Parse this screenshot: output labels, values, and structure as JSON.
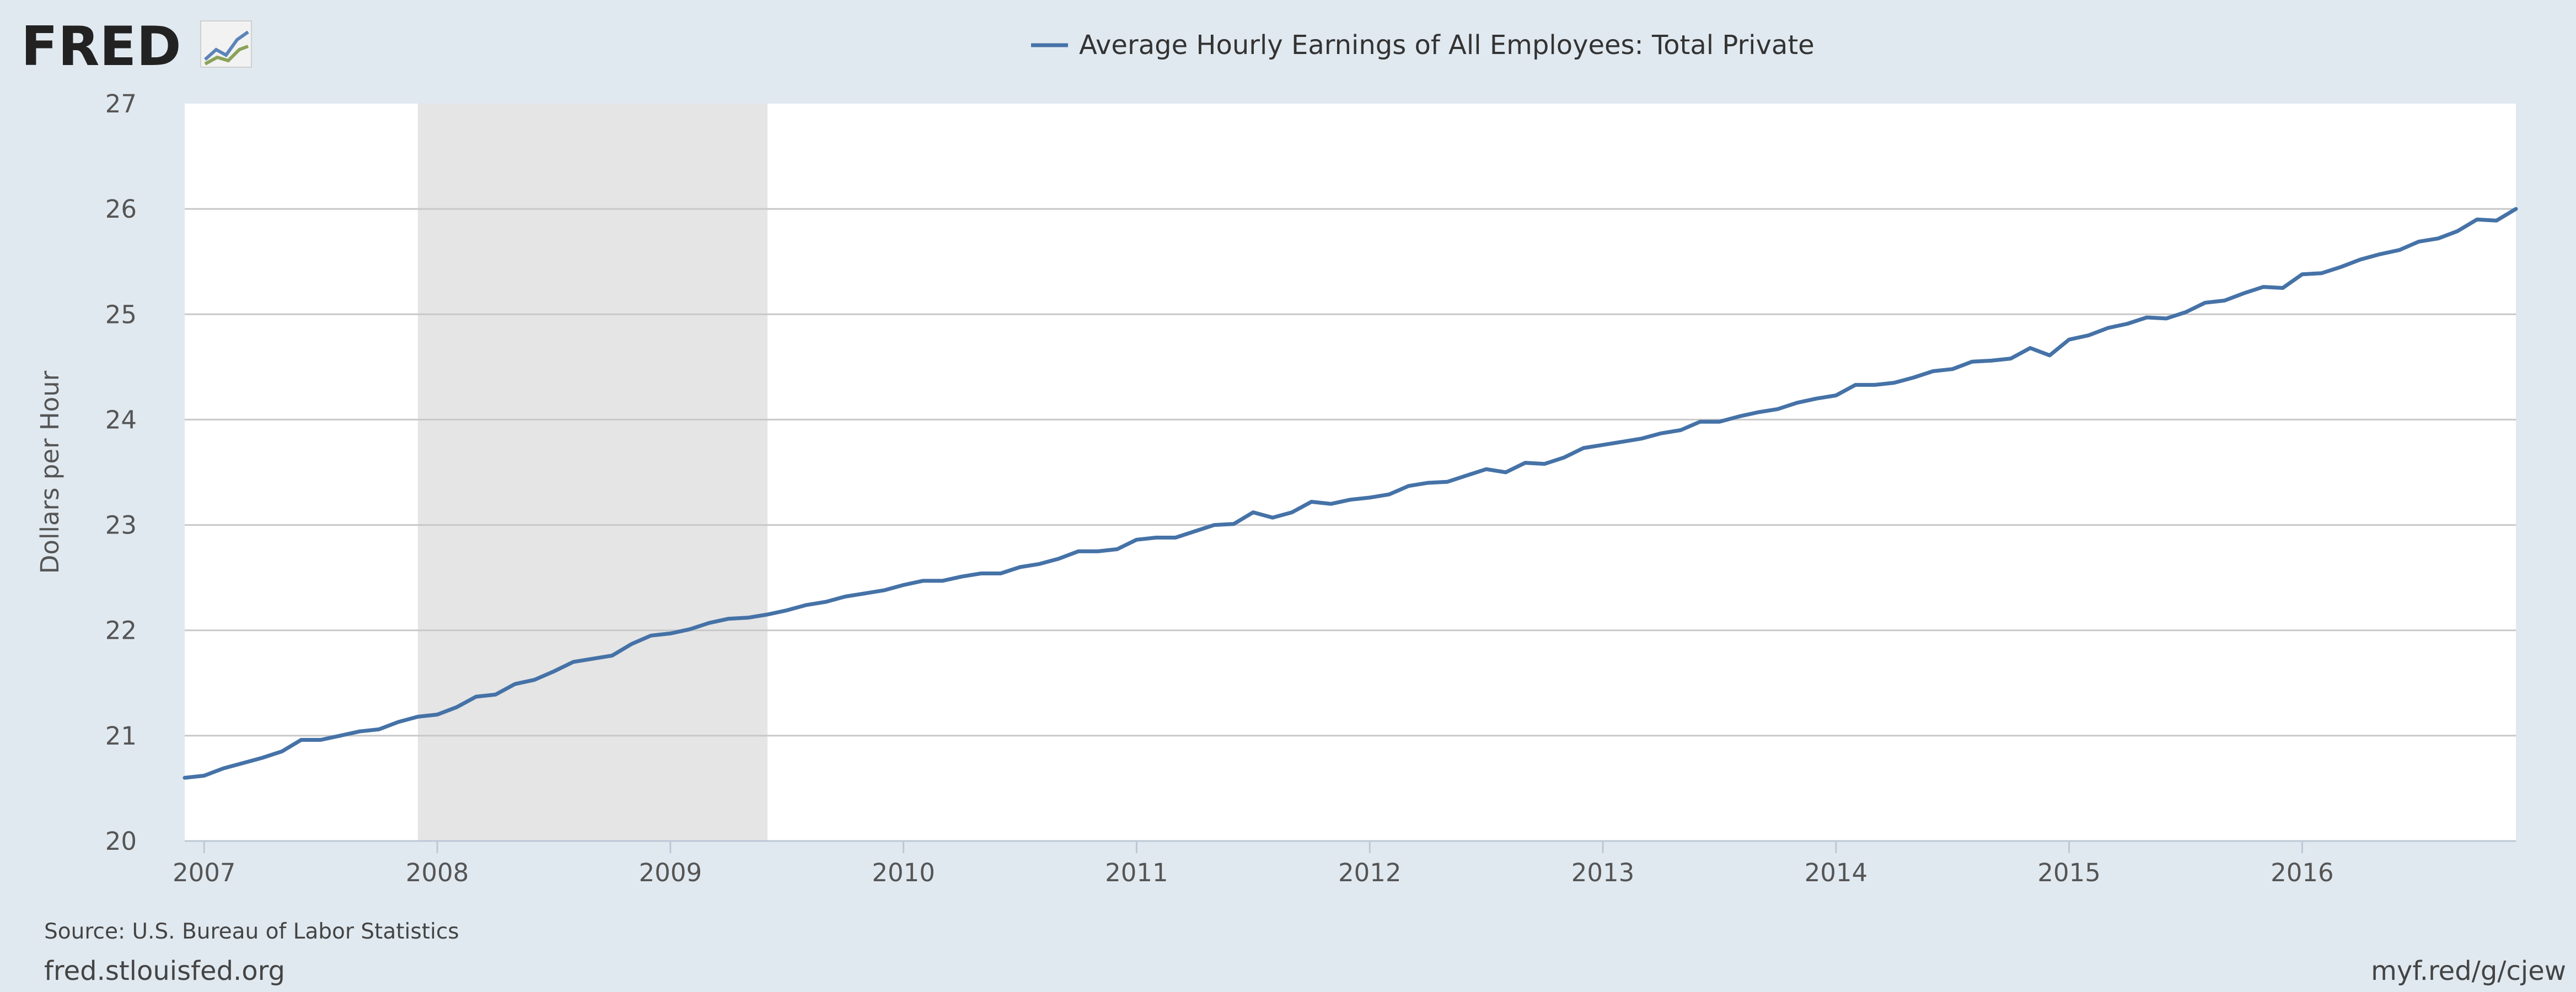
{
  "header": {
    "logo_text": "FRED",
    "logo_icon": "fred-chart-icon"
  },
  "footer": {
    "source": "Source: U.S. Bureau of Labor Statistics",
    "site": "fred.stlouisfed.org",
    "short_link": "myf.red/g/cjew"
  },
  "colors": {
    "background": "#e1e9f0",
    "plot_background": "#ffffff",
    "series": "#4572a7",
    "recession": "#e5e5e5",
    "grid": "#c8c8c8"
  },
  "chart_data": {
    "type": "line",
    "title": "",
    "xlabel": "",
    "ylabel": "Dollars per Hour",
    "legend_position": "top-center",
    "grid": true,
    "x_range": [
      "2006-12",
      "2016-12"
    ],
    "ylim": [
      20,
      27
    ],
    "y_ticks": [
      "20",
      "21",
      "22",
      "23",
      "24",
      "25",
      "26",
      "27"
    ],
    "x_ticks": [
      "2007",
      "2008",
      "2009",
      "2010",
      "2011",
      "2012",
      "2013",
      "2014",
      "2015",
      "2016"
    ],
    "recessions": [
      {
        "start": "2007-12",
        "end": "2009-06"
      }
    ],
    "series": [
      {
        "name": "Average Hourly Earnings of All Employees: Total Private",
        "x": [
          "2006-12",
          "2007-01",
          "2007-02",
          "2007-03",
          "2007-04",
          "2007-05",
          "2007-06",
          "2007-07",
          "2007-08",
          "2007-09",
          "2007-10",
          "2007-11",
          "2007-12",
          "2008-01",
          "2008-02",
          "2008-03",
          "2008-04",
          "2008-05",
          "2008-06",
          "2008-07",
          "2008-08",
          "2008-09",
          "2008-10",
          "2008-11",
          "2008-12",
          "2009-01",
          "2009-02",
          "2009-03",
          "2009-04",
          "2009-05",
          "2009-06",
          "2009-07",
          "2009-08",
          "2009-09",
          "2009-10",
          "2009-11",
          "2009-12",
          "2010-01",
          "2010-02",
          "2010-03",
          "2010-04",
          "2010-05",
          "2010-06",
          "2010-07",
          "2010-08",
          "2010-09",
          "2010-10",
          "2010-11",
          "2010-12",
          "2011-01",
          "2011-02",
          "2011-03",
          "2011-04",
          "2011-05",
          "2011-06",
          "2011-07",
          "2011-08",
          "2011-09",
          "2011-10",
          "2011-11",
          "2011-12",
          "2012-01",
          "2012-02",
          "2012-03",
          "2012-04",
          "2012-05",
          "2012-06",
          "2012-07",
          "2012-08",
          "2012-09",
          "2012-10",
          "2012-11",
          "2012-12",
          "2013-01",
          "2013-02",
          "2013-03",
          "2013-04",
          "2013-05",
          "2013-06",
          "2013-07",
          "2013-08",
          "2013-09",
          "2013-10",
          "2013-11",
          "2013-12",
          "2014-01",
          "2014-02",
          "2014-03",
          "2014-04",
          "2014-05",
          "2014-06",
          "2014-07",
          "2014-08",
          "2014-09",
          "2014-10",
          "2014-11",
          "2014-12",
          "2015-01",
          "2015-02",
          "2015-03",
          "2015-04",
          "2015-05",
          "2015-06",
          "2015-07",
          "2015-08",
          "2015-09",
          "2015-10",
          "2015-11",
          "2015-12",
          "2016-01",
          "2016-02",
          "2016-03",
          "2016-04",
          "2016-05",
          "2016-06",
          "2016-07",
          "2016-08",
          "2016-09",
          "2016-10",
          "2016-11",
          "2016-12"
        ],
        "values": [
          20.6,
          20.62,
          20.69,
          20.74,
          20.79,
          20.85,
          20.96,
          20.96,
          21.0,
          21.04,
          21.06,
          21.13,
          21.18,
          21.2,
          21.27,
          21.37,
          21.39,
          21.49,
          21.53,
          21.61,
          21.7,
          21.73,
          21.76,
          21.87,
          21.95,
          21.97,
          22.01,
          22.07,
          22.11,
          22.12,
          22.15,
          22.19,
          22.24,
          22.27,
          22.32,
          22.35,
          22.38,
          22.43,
          22.47,
          22.47,
          22.51,
          22.54,
          22.54,
          22.6,
          22.63,
          22.68,
          22.75,
          22.75,
          22.77,
          22.86,
          22.88,
          22.88,
          22.94,
          23.0,
          23.01,
          23.12,
          23.07,
          23.12,
          23.22,
          23.2,
          23.24,
          23.26,
          23.29,
          23.37,
          23.4,
          23.41,
          23.47,
          23.53,
          23.5,
          23.59,
          23.58,
          23.64,
          23.73,
          23.76,
          23.79,
          23.82,
          23.87,
          23.9,
          23.98,
          23.98,
          24.03,
          24.07,
          24.1,
          24.16,
          24.2,
          24.23,
          24.33,
          24.33,
          24.35,
          24.4,
          24.46,
          24.48,
          24.55,
          24.56,
          24.58,
          24.68,
          24.61,
          24.76,
          24.8,
          24.87,
          24.91,
          24.97,
          24.96,
          25.02,
          25.11,
          25.13,
          25.2,
          25.26,
          25.25,
          25.38,
          25.39,
          25.45,
          25.52,
          25.57,
          25.61,
          25.69,
          25.72,
          25.79,
          25.9,
          25.89,
          26.0
        ]
      }
    ]
  }
}
